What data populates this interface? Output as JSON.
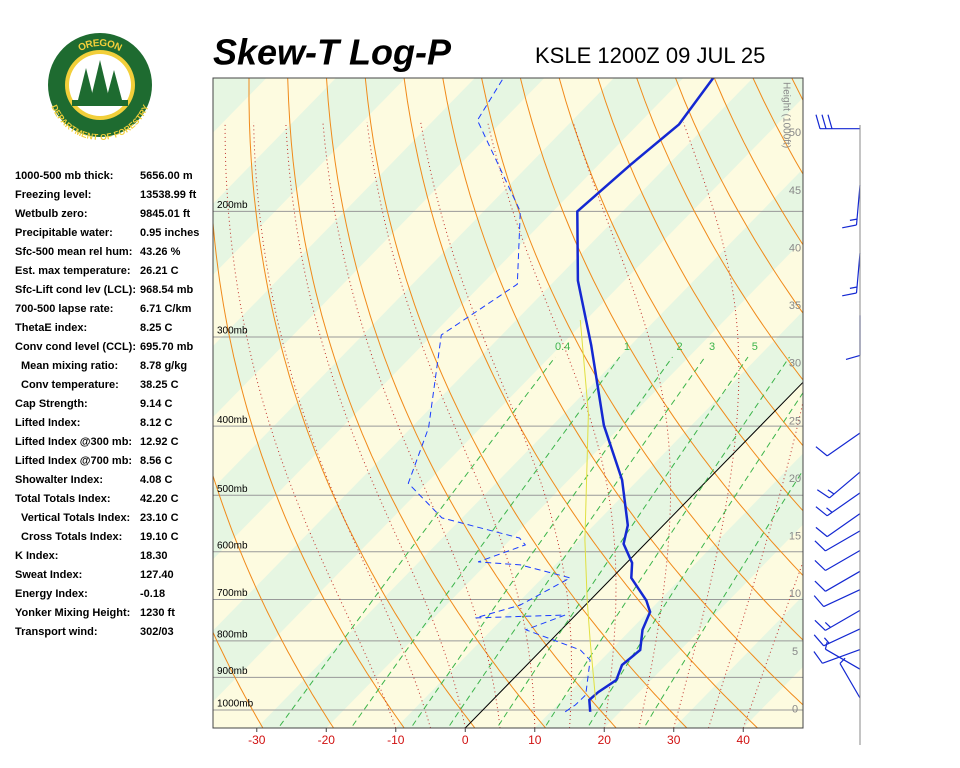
{
  "logo": {
    "top": "OREGON",
    "bottom": "DEPARTMENT OF FORESTRY"
  },
  "station": "KSLE 1200Z 09 JUL 25",
  "indices": [
    {
      "label": "1000-500 mb thick:",
      "value": "5656.00 m"
    },
    {
      "label": "Freezing level:",
      "value": "13538.99 ft"
    },
    {
      "label": "Wetbulb zero:",
      "value": "9845.01 ft"
    },
    {
      "label": "Precipitable water:",
      "value": "0.95 inches"
    },
    {
      "label": "Sfc-500 mean rel hum:",
      "value": "43.26 %"
    },
    {
      "label": "Est. max temperature:",
      "value": "26.21 C"
    },
    {
      "label": "Sfc-Lift cond lev (LCL):",
      "value": "968.54 mb"
    },
    {
      "label": "700-500 lapse rate:",
      "value": "6.71 C/km"
    },
    {
      "label": "ThetaE index:",
      "value": "8.25 C"
    },
    {
      "label": "Conv cond level (CCL):",
      "value": "695.70 mb"
    },
    {
      "label": "Mean mixing ratio:",
      "value": "8.78 g/kg",
      "indent": true
    },
    {
      "label": "Conv temperature:",
      "value": "38.25 C",
      "indent": true
    },
    {
      "label": "Cap Strength:",
      "value": "9.14 C"
    },
    {
      "label": "Lifted Index:",
      "value": "8.12 C"
    },
    {
      "label": "Lifted Index @300 mb:",
      "value": "12.92 C"
    },
    {
      "label": "Lifted Index @700 mb:",
      "value": "8.56 C"
    },
    {
      "label": "Showalter Index:",
      "value": "4.08 C"
    },
    {
      "label": "Total Totals Index:",
      "value": "42.20 C"
    },
    {
      "label": "Vertical Totals Index:",
      "value": "23.10 C",
      "indent": true
    },
    {
      "label": "Cross Totals Index:",
      "value": "19.10 C",
      "indent": true
    },
    {
      "label": "K Index:",
      "value": "18.30"
    },
    {
      "label": "Sweat Index:",
      "value": "127.40"
    },
    {
      "label": "Energy Index:",
      "value": "-0.18"
    },
    {
      "label": "Yonker Mixing Height:",
      "value": "1230 ft"
    },
    {
      "label": "Transport wind:",
      "value": "302/03"
    }
  ],
  "chart_data": {
    "type": "skewt",
    "title": "Skew-T Log-P",
    "xlim": [
      -36.3,
      48.6
    ],
    "xticks": [
      -30,
      -20,
      -10,
      0,
      10,
      20,
      30,
      40
    ],
    "ylim": [
      1060,
      130
    ],
    "ylog": true,
    "yticks": [
      {
        "value": 1000,
        "label": "1000mb"
      },
      {
        "value": 900,
        "label": "900mb"
      },
      {
        "value": 800,
        "label": "800mb"
      },
      {
        "value": 700,
        "label": "700mb"
      },
      {
        "value": 600,
        "label": "600mb"
      },
      {
        "value": 500,
        "label": "500mb"
      },
      {
        "value": 400,
        "label": "400mb"
      },
      {
        "value": 300,
        "label": "300mb"
      },
      {
        "value": 200,
        "label": "200mb"
      }
    ],
    "height_label": "Height (1000ft)",
    "height_lim": [
      -1.6,
      54.8
    ],
    "height_ticks": [
      0,
      5,
      10,
      15,
      20,
      25,
      30,
      35,
      40,
      45,
      50
    ],
    "mixing_ratio_lines": [
      0.4,
      1,
      2,
      3,
      5,
      8,
      12,
      20
    ],
    "series": [
      {
        "color": "#1428d2",
        "dash": false,
        "pressure": [
          1006,
          968,
          944,
          908,
          865,
          824,
          772,
          729,
          702,
          653,
          622,
          585,
          551,
          476,
          399,
          308,
          250,
          200,
          172,
          151,
          130
        ],
        "values": [
          15.7,
          13.9,
          14.1,
          15.0,
          13.7,
          14.2,
          11.7,
          10.3,
          8.1,
          2.8,
          0.8,
          -3.1,
          -5.1,
          -12.3,
          -22.6,
          -35.7,
          -46.7,
          -56.5,
          -55.4,
          -54.1,
          -55.7
        ]
      },
      {
        "color": "#1a3cff",
        "dash": true,
        "pressure": [
          1006,
          984,
          953,
          851,
          824,
          772,
          736,
          743,
          713,
          653,
          626,
          620,
          587,
          574,
          538,
          481,
          402,
          298,
          253,
          200,
          149,
          130
        ],
        "values": [
          12.1,
          12.6,
          12.7,
          8.4,
          5.6,
          -5.1,
          -1.5,
          -14.0,
          -9.4,
          -6.0,
          -15.0,
          -21.5,
          -17.1,
          -18.9,
          -32.9,
          -42.6,
          -47.5,
          -58.7,
          -54.9,
          -64.7,
          -83.7,
          -85.9
        ]
      },
      {
        "color": "#e0e040",
        "dash": false,
        "pressure": [
          968,
          798,
          702,
          578,
          384,
          284
        ],
        "values": [
          14.8,
          5.6,
          -0.4,
          -9.2,
          -26.5,
          -40.8
        ]
      }
    ],
    "winds": {
      "height": [
        50.4,
        45.5,
        39.6,
        34.2,
        24.0,
        20.6,
        18.8,
        17.0,
        15.5,
        13.8,
        12.0,
        10.4,
        8.6,
        7.0,
        5.2,
        3.5,
        1.0
      ],
      "direction": [
        270,
        185,
        185,
        180,
        235,
        230,
        235,
        235,
        240,
        240,
        240,
        245,
        240,
        245,
        250,
        300,
        330
      ],
      "speed": [
        30,
        15,
        15,
        10,
        10,
        15,
        15,
        10,
        10,
        10,
        10,
        10,
        15,
        15,
        10,
        5,
        5
      ]
    }
  }
}
